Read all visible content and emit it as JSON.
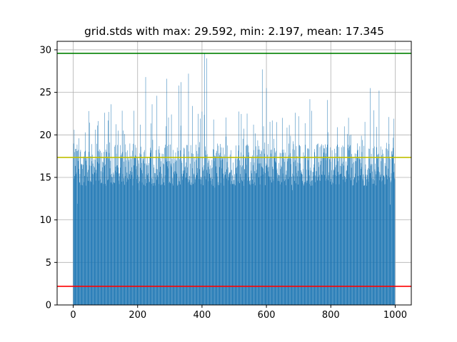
{
  "chart_data": {
    "type": "bar",
    "title": "grid.stds with max: 29.592, min: 2.197, mean: 17.345",
    "xlabel": "",
    "ylabel": "",
    "xlim": [
      -50,
      1050
    ],
    "ylim": [
      0,
      31
    ],
    "x_ticks": [
      0,
      200,
      400,
      600,
      800,
      1000
    ],
    "y_ticks": [
      0,
      5,
      10,
      15,
      20,
      25,
      30
    ],
    "grid": true,
    "bar_color": "#1f77b4",
    "n_bars": 1000,
    "reference_lines": [
      {
        "label": "max",
        "value": 29.592,
        "color": "#008000"
      },
      {
        "label": "mean",
        "value": 17.345,
        "color": "#bfbf00"
      },
      {
        "label": "min",
        "value": 2.197,
        "color": "#ff0000"
      }
    ],
    "stats": {
      "max": 29.592,
      "min": 2.197,
      "mean": 17.345
    },
    "spikes": [
      {
        "x": 3,
        "y": 20.6
      },
      {
        "x": 13,
        "y": 11.9
      },
      {
        "x": 18,
        "y": 19.6
      },
      {
        "x": 30,
        "y": 16.5
      },
      {
        "x": 48,
        "y": 22.8
      },
      {
        "x": 75,
        "y": 21.1
      },
      {
        "x": 98,
        "y": 22.6
      },
      {
        "x": 118,
        "y": 23.6
      },
      {
        "x": 140,
        "y": 20.5
      },
      {
        "x": 160,
        "y": 20.1
      },
      {
        "x": 208,
        "y": 21.2
      },
      {
        "x": 225,
        "y": 26.8
      },
      {
        "x": 245,
        "y": 23.6
      },
      {
        "x": 260,
        "y": 24.6
      },
      {
        "x": 290,
        "y": 26.6
      },
      {
        "x": 305,
        "y": 22.4
      },
      {
        "x": 328,
        "y": 25.8
      },
      {
        "x": 335,
        "y": 26.2
      },
      {
        "x": 358,
        "y": 27.2
      },
      {
        "x": 370,
        "y": 23.4
      },
      {
        "x": 408,
        "y": 29.592
      },
      {
        "x": 415,
        "y": 29.0
      },
      {
        "x": 440,
        "y": 20.0
      },
      {
        "x": 475,
        "y": 19.8
      },
      {
        "x": 540,
        "y": 22.5
      },
      {
        "x": 560,
        "y": 21.2
      },
      {
        "x": 587,
        "y": 27.7
      },
      {
        "x": 600,
        "y": 25.5
      },
      {
        "x": 650,
        "y": 22.0
      },
      {
        "x": 690,
        "y": 22.6
      },
      {
        "x": 735,
        "y": 24.2
      },
      {
        "x": 790,
        "y": 24.1
      },
      {
        "x": 820,
        "y": 20.9
      },
      {
        "x": 842,
        "y": 21.0
      },
      {
        "x": 895,
        "y": 19.9
      },
      {
        "x": 922,
        "y": 25.5
      },
      {
        "x": 950,
        "y": 25.2
      },
      {
        "x": 980,
        "y": 22.1
      },
      {
        "x": 995,
        "y": 21.9
      }
    ],
    "dips": [
      {
        "x": 13,
        "y": 11.9
      },
      {
        "x": 205,
        "y": 13.5
      },
      {
        "x": 440,
        "y": 13.8
      },
      {
        "x": 680,
        "y": 13.5
      },
      {
        "x": 985,
        "y": 11.8
      }
    ],
    "typical_range": [
      14,
      19
    ]
  }
}
